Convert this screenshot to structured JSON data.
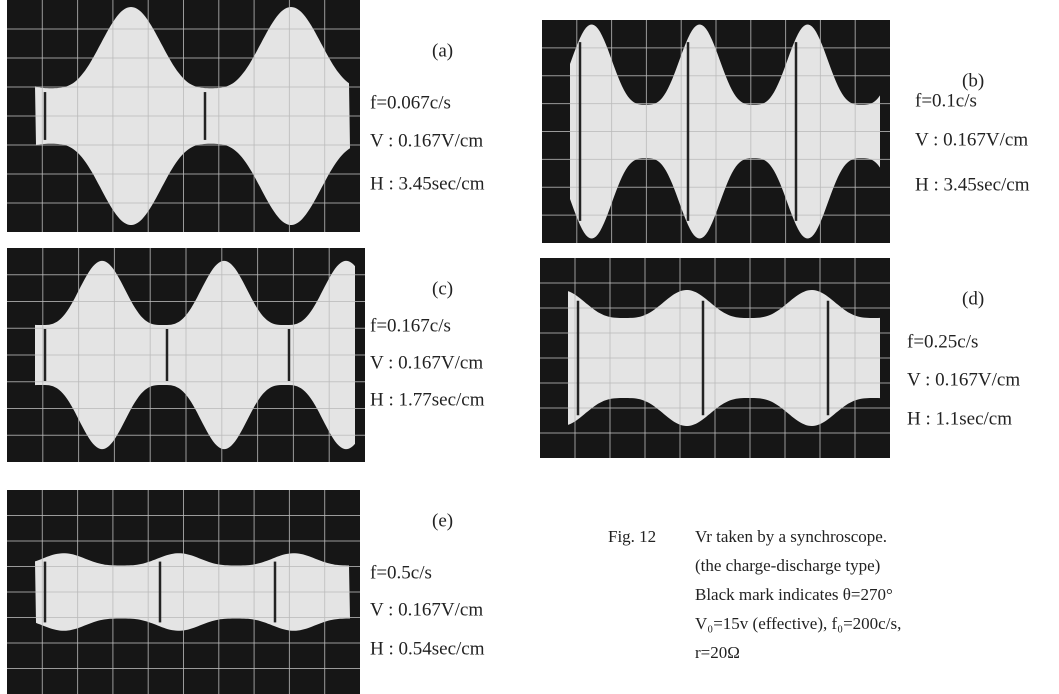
{
  "panels": [
    {
      "label": "(a)",
      "f": "f=0.067c/s",
      "v": "V : 0.167V/cm",
      "h": "H : 3.45sec/cm"
    },
    {
      "label": "(b)",
      "f": "f=0.1c/s",
      "v": "V : 0.167V/cm",
      "h": "H : 3.45sec/cm"
    },
    {
      "label": "(c)",
      "f": "f=0.167c/s",
      "v": "V : 0.167V/cm",
      "h": "H : 1.77sec/cm"
    },
    {
      "label": "(d)",
      "f": "f=0.25c/s",
      "v": "V : 0.167V/cm",
      "h": "H : 1.1sec/cm"
    },
    {
      "label": "(e)",
      "f": "f=0.5c/s",
      "v": "V : 0.167V/cm",
      "h": "H : 0.54sec/cm"
    }
  ],
  "caption": {
    "number": "Fig. 12",
    "lines": [
      "Vr taken by a synchroscope.",
      "(the charge-discharge type)",
      "Black mark indicates θ=270°",
      "V₀=15v (effective), f₀=200c/s,",
      "r=20Ω"
    ]
  }
}
